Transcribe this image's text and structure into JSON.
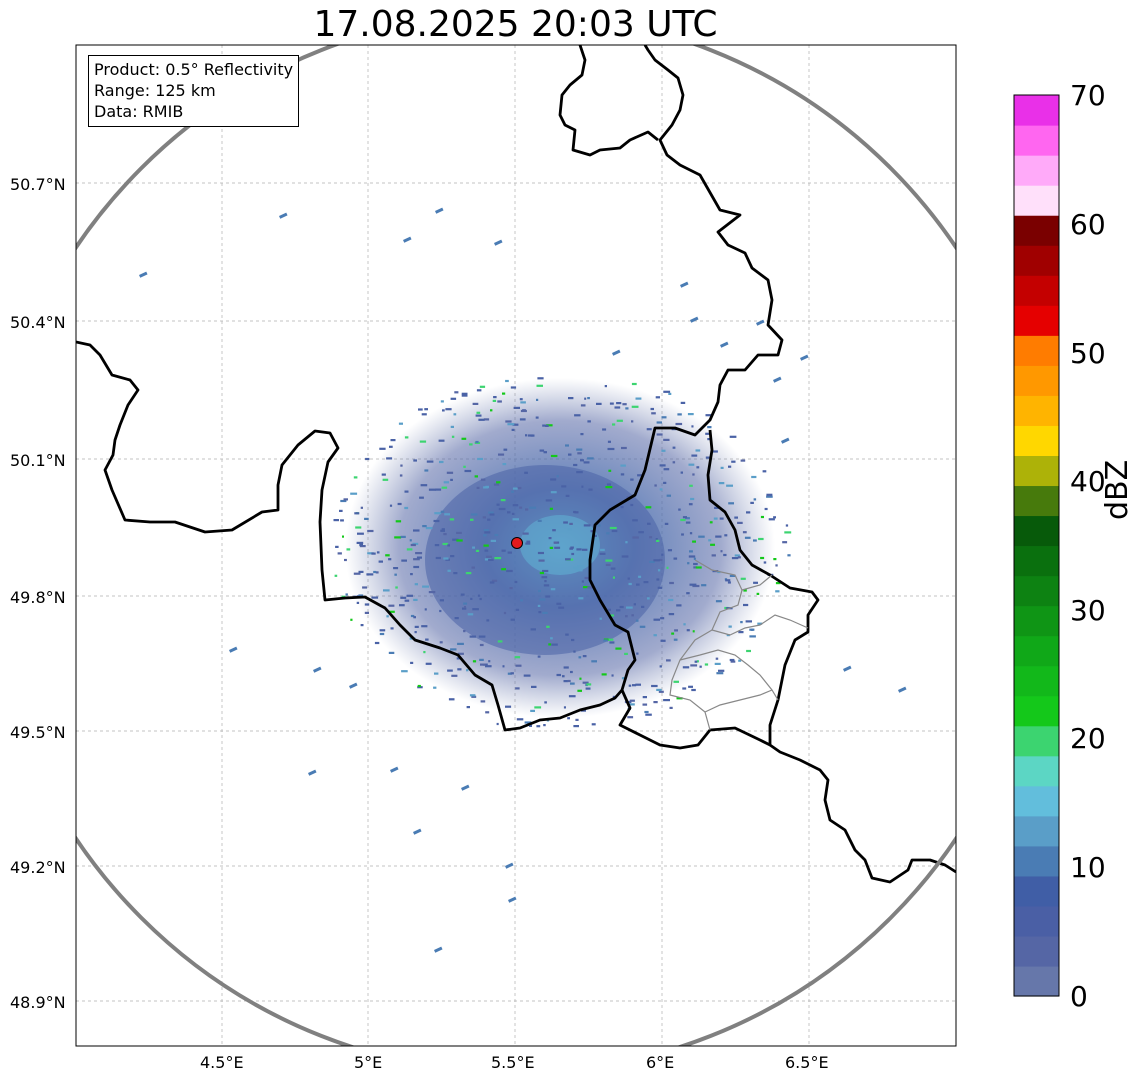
{
  "title": "17.08.2025 20:03 UTC",
  "info": {
    "product": "Product: 0.5° Reflectivity",
    "range": "Range: 125 km",
    "data_source": "Data: RMIB"
  },
  "map": {
    "lat_ticks": [
      "50.7°N",
      "50.4°N",
      "50.1°N",
      "49.8°N",
      "49.5°N",
      "49.2°N",
      "48.9°N"
    ],
    "lon_ticks": [
      "4.5°E",
      "5°E",
      "5.5°E",
      "6°E",
      "6.5°E"
    ],
    "radar_site": {
      "lon": 5.505,
      "lat": 49.915
    },
    "range_ring_km": 125,
    "colors": {
      "border": "#000000",
      "subdivision": "#888888",
      "range_ring": "#808080",
      "grid": "#b0b0b0",
      "radar_marker": "#e31a1c"
    }
  },
  "colorbar": {
    "label": "dBZ",
    "ticks": [
      "70",
      "60",
      "50",
      "40",
      "30",
      "20",
      "10",
      "0"
    ],
    "min": 0,
    "max": 70,
    "colors": [
      "#6677aa",
      "#5566a5",
      "#4a5fa5",
      "#405ea6",
      "#4a7cb4",
      "#5a9ec8",
      "#62bedc",
      "#5cd6c4",
      "#3cd470",
      "#14c81a",
      "#12b81a",
      "#10a818",
      "#0f9515",
      "#0d8212",
      "#0a700e",
      "#075a0a",
      "#477a0c",
      "#adb208",
      "#ffd700",
      "#ffb400",
      "#ff9800",
      "#ff7c00",
      "#e50000",
      "#c40000",
      "#a00000",
      "#7a0000",
      "#ffe0fa",
      "#ffaaf9",
      "#ff66f0",
      "#e930e8"
    ]
  }
}
